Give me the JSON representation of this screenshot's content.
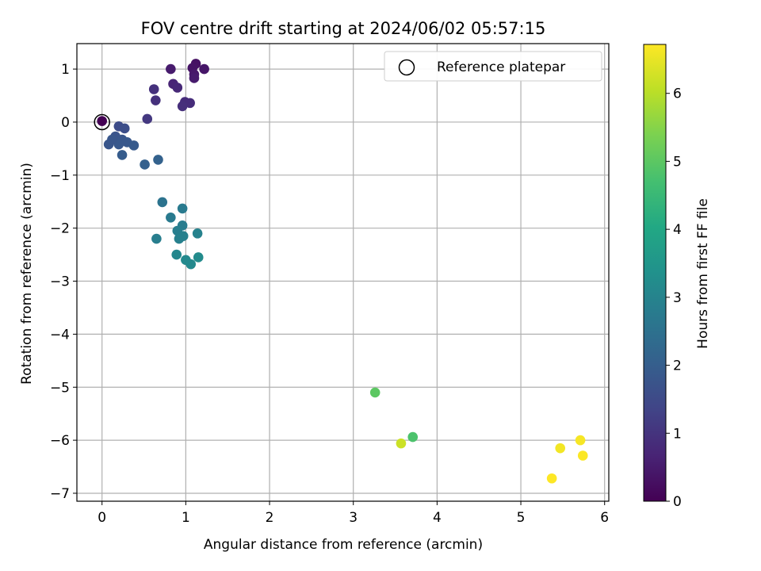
{
  "chart_data": {
    "type": "scatter",
    "title": "FOV centre drift starting at 2024/06/02 05:57:15",
    "xlabel": "Angular distance from reference (arcmin)",
    "ylabel": "Rotation from reference (arcmin)",
    "xlim": [
      -0.3,
      6.05
    ],
    "ylim": [
      -7.15,
      1.48
    ],
    "xticks": [
      0,
      1,
      2,
      3,
      4,
      5,
      6
    ],
    "xtick_labels": [
      "0",
      "1",
      "2",
      "3",
      "4",
      "5",
      "6"
    ],
    "yticks": [
      1,
      0,
      -1,
      -2,
      -3,
      -4,
      -5,
      -6,
      -7
    ],
    "ytick_labels": [
      "1",
      "0",
      "−1",
      "−2",
      "−3",
      "−4",
      "−5",
      "−6",
      "−7"
    ],
    "grid": true,
    "legend": {
      "position": "top-right",
      "entries": [
        {
          "label": "Reference platepar",
          "marker": "hollow-circle"
        }
      ]
    },
    "colorbar": {
      "label": "Hours from first FF file",
      "colormap": "viridis",
      "range": [
        0,
        6.72
      ],
      "ticks": [
        0,
        1,
        2,
        3,
        4,
        5,
        6
      ],
      "tick_labels": [
        "0",
        "1",
        "2",
        "3",
        "4",
        "5",
        "6"
      ]
    },
    "reference_point": {
      "x": 0,
      "y": 0
    },
    "points": [
      {
        "x": 0.0,
        "y": 0.02,
        "hours": 0.0
      },
      {
        "x": 0.82,
        "y": 1.0,
        "hours": 0.5
      },
      {
        "x": 1.12,
        "y": 1.1,
        "hours": 0.3
      },
      {
        "x": 1.08,
        "y": 1.02,
        "hours": 0.35
      },
      {
        "x": 1.22,
        "y": 1.0,
        "hours": 0.4
      },
      {
        "x": 1.1,
        "y": 0.9,
        "hours": 0.45
      },
      {
        "x": 1.1,
        "y": 0.83,
        "hours": 0.5
      },
      {
        "x": 0.85,
        "y": 0.72,
        "hours": 0.7
      },
      {
        "x": 0.9,
        "y": 0.65,
        "hours": 0.75
      },
      {
        "x": 0.62,
        "y": 0.62,
        "hours": 0.95
      },
      {
        "x": 0.64,
        "y": 0.41,
        "hours": 0.95
      },
      {
        "x": 0.99,
        "y": 0.38,
        "hours": 0.85
      },
      {
        "x": 1.05,
        "y": 0.36,
        "hours": 0.85
      },
      {
        "x": 0.96,
        "y": 0.3,
        "hours": 0.9
      },
      {
        "x": 0.54,
        "y": 0.06,
        "hours": 1.1
      },
      {
        "x": 0.2,
        "y": -0.08,
        "hours": 1.55
      },
      {
        "x": 0.27,
        "y": -0.12,
        "hours": 1.6
      },
      {
        "x": 0.16,
        "y": -0.27,
        "hours": 1.75
      },
      {
        "x": 0.24,
        "y": -0.33,
        "hours": 1.8
      },
      {
        "x": 0.3,
        "y": -0.38,
        "hours": 1.85
      },
      {
        "x": 0.2,
        "y": -0.42,
        "hours": 1.85
      },
      {
        "x": 0.38,
        "y": -0.44,
        "hours": 1.9
      },
      {
        "x": 0.08,
        "y": -0.42,
        "hours": 1.8
      },
      {
        "x": 0.12,
        "y": -0.33,
        "hours": 1.8
      },
      {
        "x": 0.24,
        "y": -0.62,
        "hours": 1.95
      },
      {
        "x": 0.51,
        "y": -0.8,
        "hours": 2.05
      },
      {
        "x": 0.67,
        "y": -0.71,
        "hours": 2.1
      },
      {
        "x": 0.72,
        "y": -1.51,
        "hours": 2.55
      },
      {
        "x": 0.96,
        "y": -1.63,
        "hours": 2.75
      },
      {
        "x": 0.82,
        "y": -1.8,
        "hours": 2.75
      },
      {
        "x": 0.96,
        "y": -1.95,
        "hours": 2.8
      },
      {
        "x": 0.9,
        "y": -2.05,
        "hours": 2.85
      },
      {
        "x": 1.14,
        "y": -2.1,
        "hours": 2.95
      },
      {
        "x": 0.97,
        "y": -2.15,
        "hours": 2.9
      },
      {
        "x": 0.92,
        "y": -2.2,
        "hours": 2.9
      },
      {
        "x": 0.65,
        "y": -2.2,
        "hours": 2.85
      },
      {
        "x": 0.89,
        "y": -2.5,
        "hours": 3.1
      },
      {
        "x": 1.0,
        "y": -2.6,
        "hours": 3.15
      },
      {
        "x": 1.15,
        "y": -2.55,
        "hours": 3.2
      },
      {
        "x": 1.06,
        "y": -2.68,
        "hours": 3.15
      },
      {
        "x": 3.26,
        "y": -5.1,
        "hours": 5.0
      },
      {
        "x": 3.71,
        "y": -5.94,
        "hours": 4.8
      },
      {
        "x": 3.57,
        "y": -6.06,
        "hours": 6.2
      },
      {
        "x": 5.47,
        "y": -6.15,
        "hours": 6.6
      },
      {
        "x": 5.71,
        "y": -6.0,
        "hours": 6.65
      },
      {
        "x": 5.74,
        "y": -6.29,
        "hours": 6.7
      },
      {
        "x": 5.37,
        "y": -6.72,
        "hours": 6.72
      }
    ]
  }
}
